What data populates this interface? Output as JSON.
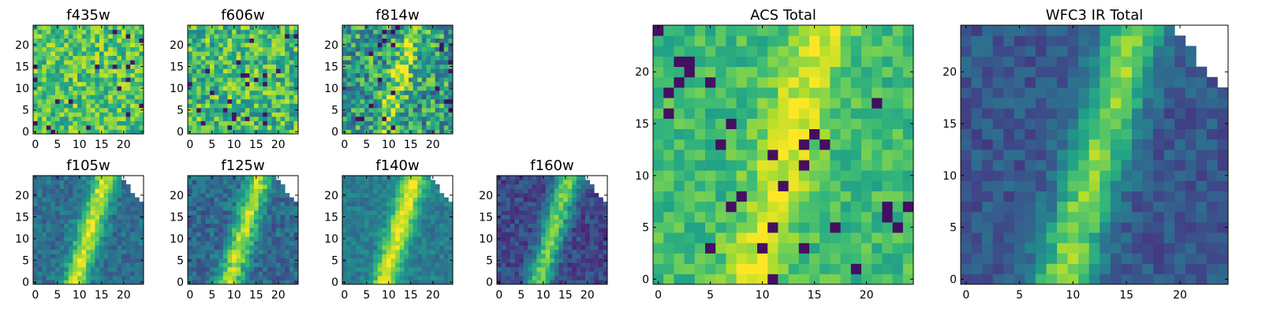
{
  "chart_data": [
    {
      "type": "heatmap",
      "title": "f435w",
      "colormap": "viridis",
      "grid": false,
      "xlim": [
        0,
        25
      ],
      "ylim": [
        0,
        25
      ],
      "xticks": [
        "0",
        "5",
        "10",
        "15",
        "20"
      ],
      "yticks": [
        "0",
        "5",
        "10",
        "15",
        "20"
      ],
      "pattern": "noise",
      "level": 0.72,
      "spread": 0.22,
      "masked_corner": "none"
    },
    {
      "type": "heatmap",
      "title": "f606w",
      "colormap": "viridis",
      "grid": false,
      "xlim": [
        0,
        25
      ],
      "ylim": [
        0,
        25
      ],
      "xticks": [
        "0",
        "5",
        "10",
        "15",
        "20"
      ],
      "yticks": [
        "0",
        "5",
        "10",
        "15",
        "20"
      ],
      "pattern": "noise",
      "level": 0.68,
      "spread": 0.25,
      "masked_corner": "none"
    },
    {
      "type": "heatmap",
      "title": "f814w",
      "colormap": "viridis",
      "grid": false,
      "xlim": [
        0,
        25
      ],
      "ylim": [
        0,
        25
      ],
      "xticks": [
        "0",
        "5",
        "10",
        "15",
        "20"
      ],
      "yticks": [
        "0",
        "5",
        "10",
        "15",
        "20"
      ],
      "pattern": "noise_streak",
      "level": 0.55,
      "spread": 0.3,
      "masked_corner": "none"
    },
    {
      "type": "heatmap",
      "title": "f105w",
      "colormap": "viridis",
      "grid": false,
      "xlim": [
        0,
        25
      ],
      "ylim": [
        0,
        25
      ],
      "xticks": [
        "0",
        "5",
        "10",
        "15",
        "20"
      ],
      "yticks": [
        "0",
        "5",
        "10",
        "15",
        "20"
      ],
      "pattern": "streak",
      "level": 0.45,
      "spread": 0.12,
      "masked_corner": "top-right"
    },
    {
      "type": "heatmap",
      "title": "f125w",
      "colormap": "viridis",
      "grid": false,
      "xlim": [
        0,
        25
      ],
      "ylim": [
        0,
        25
      ],
      "xticks": [
        "0",
        "5",
        "10",
        "15",
        "20"
      ],
      "yticks": [
        "0",
        "5",
        "10",
        "15",
        "20"
      ],
      "pattern": "streak",
      "level": 0.42,
      "spread": 0.14,
      "masked_corner": "top-right"
    },
    {
      "type": "heatmap",
      "title": "f140w",
      "colormap": "viridis",
      "grid": false,
      "xlim": [
        0,
        25
      ],
      "ylim": [
        0,
        25
      ],
      "xticks": [
        "0",
        "5",
        "10",
        "15",
        "20"
      ],
      "yticks": [
        "0",
        "5",
        "10",
        "15",
        "20"
      ],
      "pattern": "streak",
      "level": 0.5,
      "spread": 0.1,
      "masked_corner": "top-right"
    },
    {
      "type": "heatmap",
      "title": "f160w",
      "colormap": "viridis",
      "grid": false,
      "xlim": [
        0,
        25
      ],
      "ylim": [
        0,
        25
      ],
      "xticks": [
        "0",
        "5",
        "10",
        "15",
        "20"
      ],
      "yticks": [
        "0",
        "5",
        "10",
        "15",
        "20"
      ],
      "pattern": "streak",
      "level": 0.3,
      "spread": 0.12,
      "masked_corner": "top-right"
    },
    {
      "type": "heatmap",
      "title": "ACS Total",
      "colormap": "viridis",
      "grid": false,
      "xlim": [
        0,
        25
      ],
      "ylim": [
        0,
        25
      ],
      "xticks": [
        "0",
        "5",
        "10",
        "15",
        "20"
      ],
      "yticks": [
        "0",
        "5",
        "10",
        "15",
        "20"
      ],
      "pattern": "noise_streak",
      "level": 0.68,
      "spread": 0.12,
      "masked_corner": "none"
    },
    {
      "type": "heatmap",
      "title": "WFC3 IR Total",
      "colormap": "viridis",
      "grid": false,
      "xlim": [
        0,
        25
      ],
      "ylim": [
        0,
        25
      ],
      "xticks": [
        "0",
        "5",
        "10",
        "15",
        "20"
      ],
      "yticks": [
        "0",
        "5",
        "10",
        "15",
        "20"
      ],
      "pattern": "streak",
      "level": 0.35,
      "spread": 0.1,
      "masked_corner": "top-right"
    }
  ]
}
